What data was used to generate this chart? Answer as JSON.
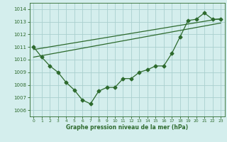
{
  "hours": [
    0,
    1,
    2,
    3,
    4,
    5,
    6,
    7,
    8,
    9,
    10,
    11,
    12,
    13,
    14,
    15,
    16,
    17,
    18,
    19,
    20,
    21,
    22,
    23
  ],
  "pressure": [
    1011.0,
    1010.2,
    1009.5,
    1009.0,
    1008.2,
    1007.6,
    1006.8,
    1006.5,
    1007.5,
    1007.8,
    1007.8,
    1008.5,
    1008.5,
    1009.0,
    1009.2,
    1009.5,
    1009.5,
    1010.5,
    1011.8,
    1013.1,
    1013.2,
    1013.7,
    1013.2,
    1013.2
  ],
  "line1_x": [
    0,
    23
  ],
  "line1_y": [
    1010.8,
    1013.25
  ],
  "line2_x": [
    0,
    23
  ],
  "line2_y": [
    1010.2,
    1012.9
  ],
  "ylim": [
    1005.5,
    1014.5
  ],
  "xlim": [
    -0.5,
    23.5
  ],
  "yticks": [
    1006,
    1007,
    1008,
    1009,
    1010,
    1011,
    1012,
    1013,
    1014
  ],
  "xticks": [
    0,
    1,
    2,
    3,
    4,
    5,
    6,
    7,
    8,
    9,
    10,
    11,
    12,
    13,
    14,
    15,
    16,
    17,
    18,
    19,
    20,
    21,
    22,
    23
  ],
  "xlabel": "Graphe pression niveau de la mer (hPa)",
  "line_color": "#2d6a2d",
  "bg_color": "#d4eeed",
  "grid_color": "#aad0ce",
  "marker": "D",
  "marker_size": 2.5
}
